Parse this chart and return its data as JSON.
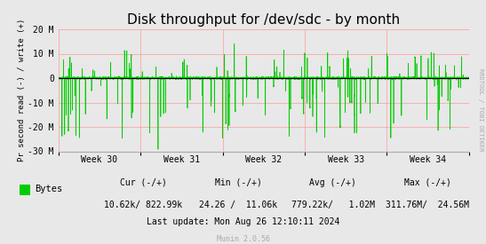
{
  "title": "Disk throughput for /dev/sdc - by month",
  "ylabel": "Pr second read (-) / write (+)",
  "background_color": "#e8e8e8",
  "plot_bg_color": "#e8e8e8",
  "line_color": "#00cc00",
  "zero_line_color": "#000000",
  "grid_color": "#ff9999",
  "ylim": [
    -30000000,
    20000000
  ],
  "yticks": [
    -30000000,
    -20000000,
    -10000000,
    0,
    10000000,
    20000000
  ],
  "ytick_labels": [
    "-30 M",
    "-20 M",
    "-10 M",
    "0",
    "10 M",
    "20 M"
  ],
  "xtick_labels": [
    "Week 30",
    "Week 31",
    "Week 32",
    "Week 33",
    "Week 34"
  ],
  "watermark": "RRDTOOL / TOBI OETIKER",
  "munin_version": "Munin 2.0.56",
  "legend_label": "Bytes",
  "legend_color": "#00cc00",
  "stats_cur": "10.62k/ 822.99k",
  "stats_min": "24.26 /  11.06k",
  "stats_avg": "779.22k/   1.02M",
  "stats_max": "311.76M/  24.56M",
  "last_update": "Last update: Mon Aug 26 12:10:11 2024"
}
